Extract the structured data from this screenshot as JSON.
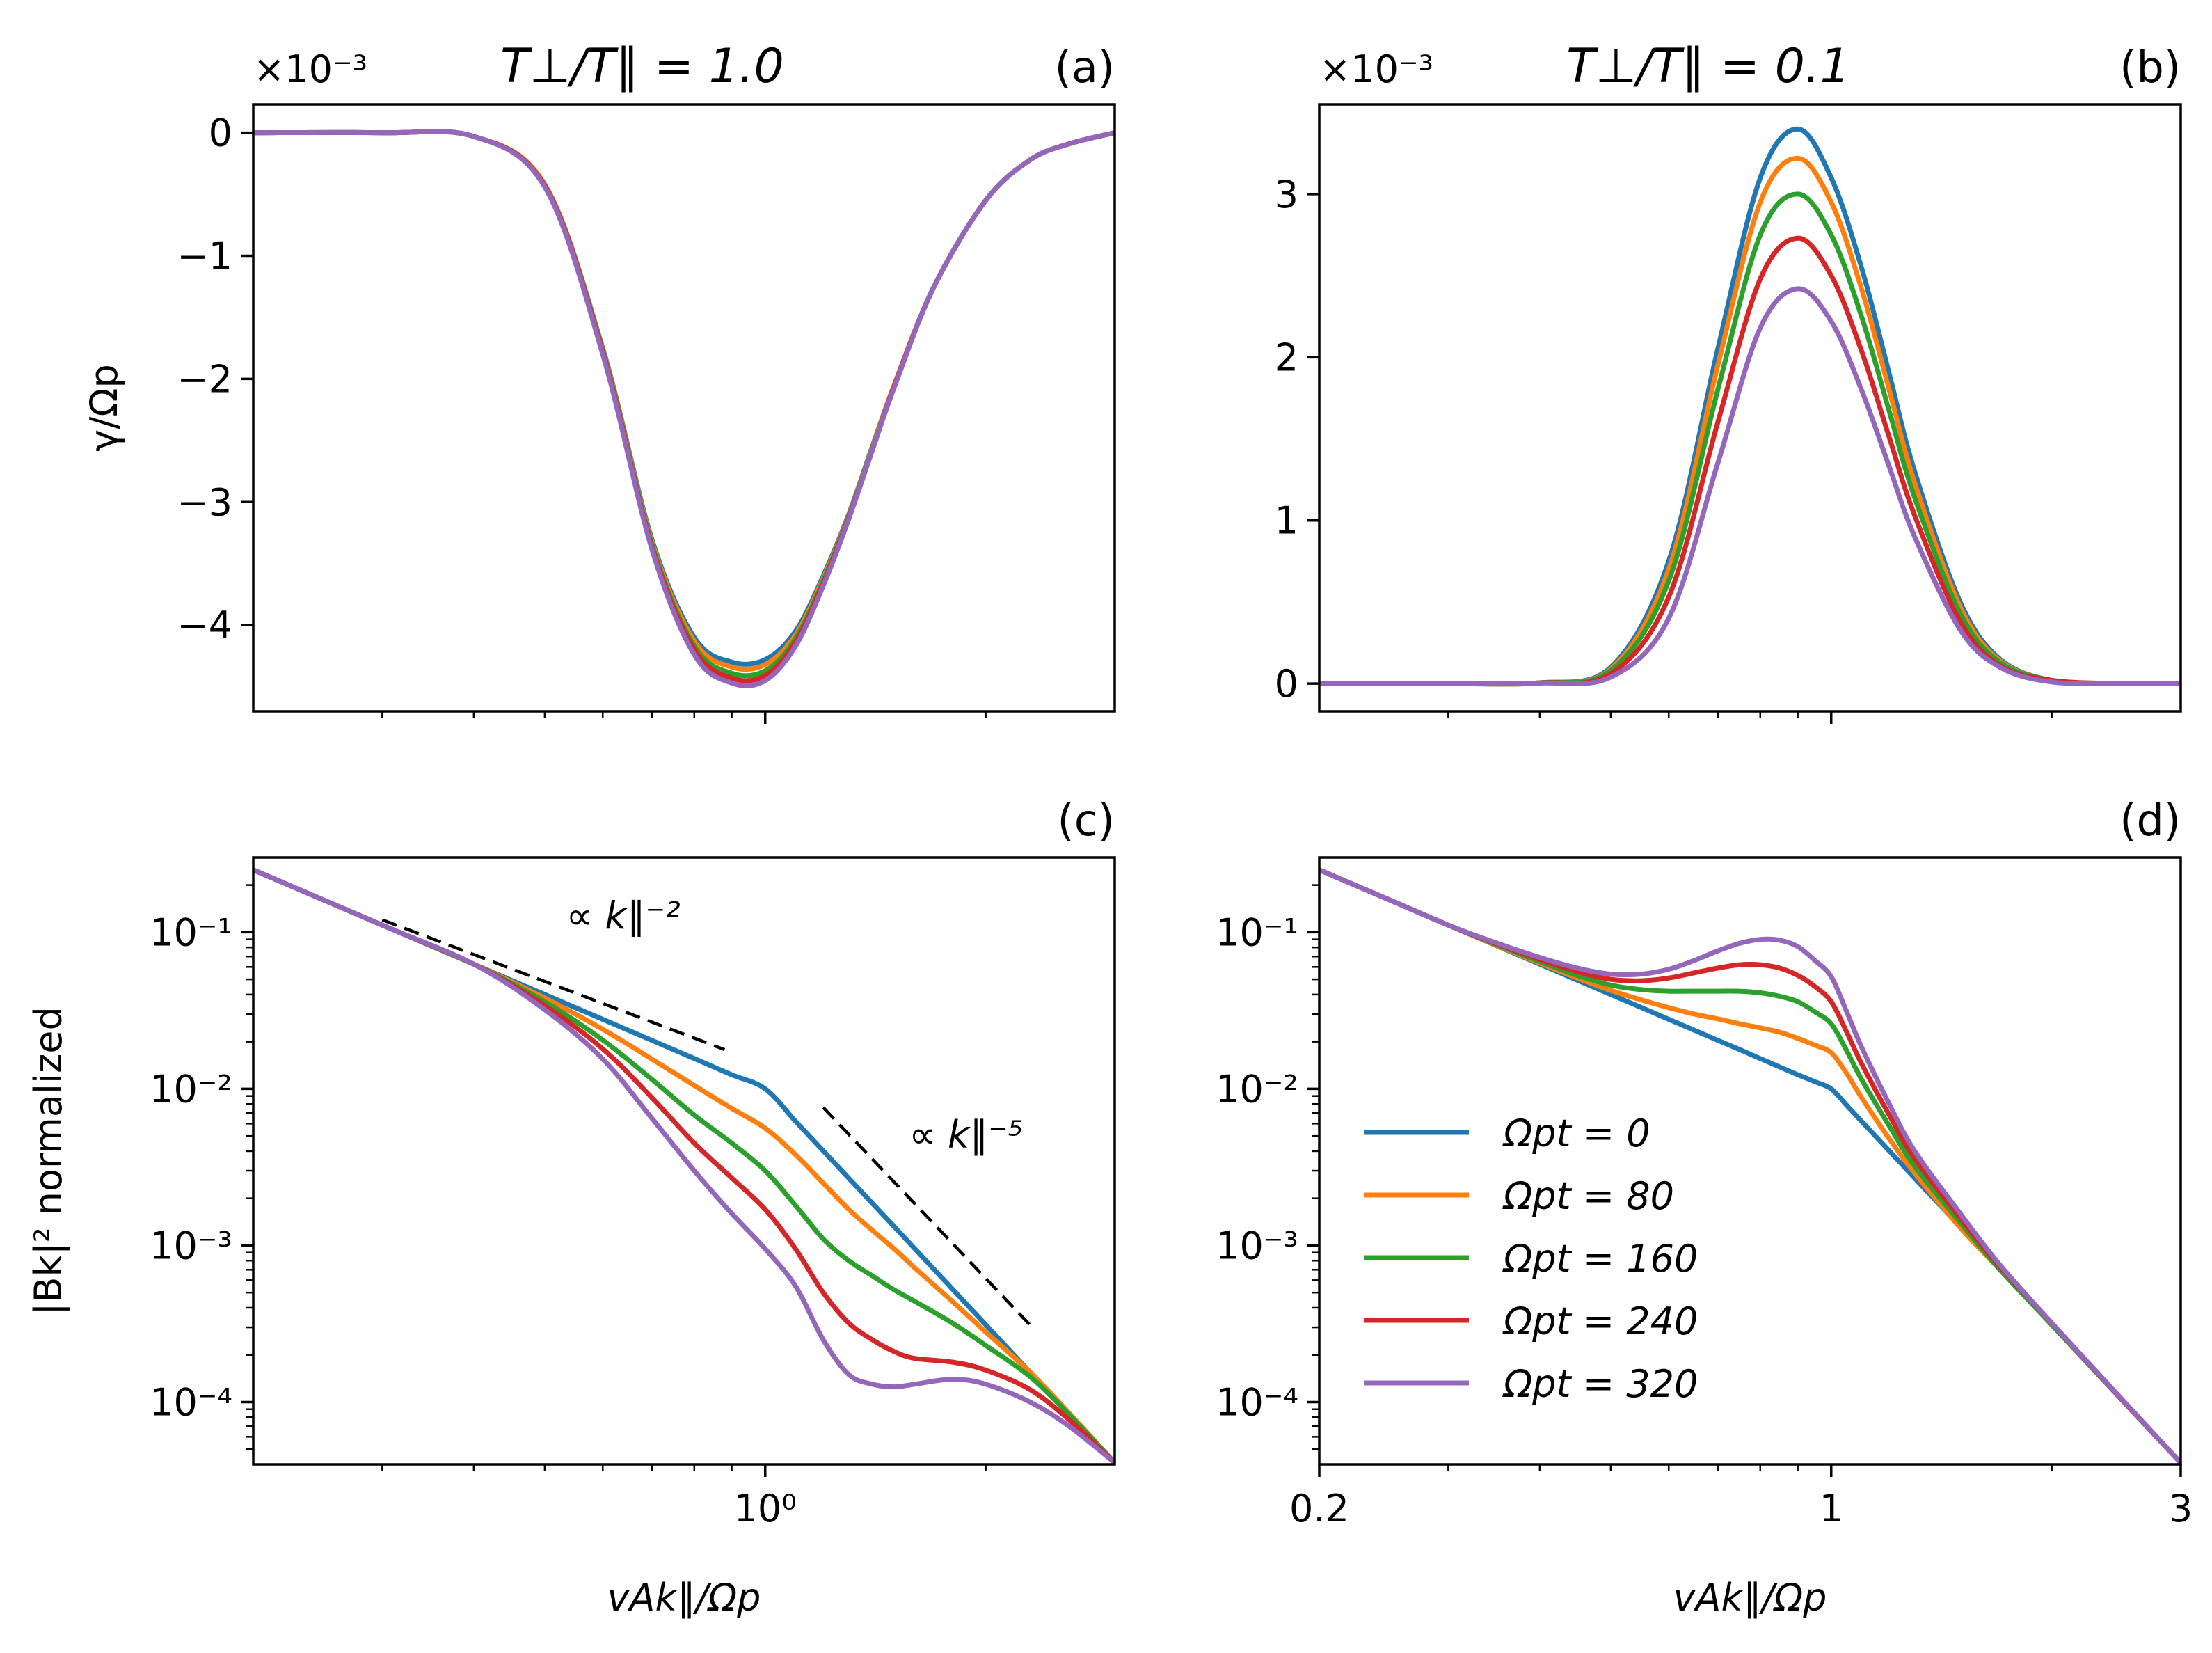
{
  "figure": {
    "colors": [
      "#1f77b4",
      "#ff7f0e",
      "#2ca02c",
      "#d62728",
      "#9467bd"
    ],
    "legend": {
      "entries": [
        "Ωpt = 0",
        "Ωpt = 80",
        "Ωpt = 160",
        "Ωpt = 240",
        "Ωpt = 320"
      ]
    }
  },
  "chart_data": [
    {
      "id": "a",
      "type": "line",
      "panel_label": "(a)",
      "title": "T⊥/T∥ = 1.0",
      "ylabel": "γ/Ωp",
      "xlabel": "",
      "y_multiplier_label": "×10⁻³",
      "xscale": "log",
      "xlim": [
        0.2,
        3.0
      ],
      "ylim": [
        -4.7,
        0.23
      ],
      "yticks": [
        0,
        -1,
        -2,
        -3,
        -4
      ],
      "ytick_labels": [
        "0",
        "−1",
        "−2",
        "−3",
        "−4"
      ],
      "x_grid": [
        0.2,
        0.3,
        0.4,
        0.5,
        0.6,
        0.7,
        0.8,
        0.9,
        1.0,
        1.1,
        1.2,
        1.3,
        1.4,
        1.5,
        1.7,
        2.0,
        2.3,
        2.6,
        3.0
      ],
      "series": [
        {
          "name": "Ωpt = 0",
          "values": [
            0.0,
            0.0,
            -0.03,
            -0.42,
            -1.75,
            -3.3,
            -4.1,
            -4.3,
            -4.28,
            -4.05,
            -3.6,
            -3.1,
            -2.55,
            -2.05,
            -1.25,
            -0.55,
            -0.22,
            -0.09,
            0.0
          ]
        },
        {
          "name": "Ωpt = 80",
          "values": [
            0.0,
            0.0,
            -0.03,
            -0.42,
            -1.76,
            -3.32,
            -4.13,
            -4.34,
            -4.32,
            -4.08,
            -3.62,
            -3.11,
            -2.56,
            -2.05,
            -1.25,
            -0.55,
            -0.22,
            -0.09,
            0.0
          ]
        },
        {
          "name": "Ωpt = 160",
          "values": [
            0.0,
            0.0,
            -0.03,
            -0.43,
            -1.77,
            -3.34,
            -4.17,
            -4.39,
            -4.37,
            -4.11,
            -3.64,
            -3.12,
            -2.57,
            -2.06,
            -1.25,
            -0.55,
            -0.22,
            -0.09,
            0.0
          ]
        },
        {
          "name": "Ωpt = 240",
          "values": [
            0.0,
            0.0,
            -0.03,
            -0.43,
            -1.78,
            -3.36,
            -4.2,
            -4.43,
            -4.41,
            -4.14,
            -3.66,
            -3.13,
            -2.58,
            -2.06,
            -1.25,
            -0.55,
            -0.22,
            -0.09,
            0.0
          ]
        },
        {
          "name": "Ωpt = 320",
          "values": [
            0.0,
            0.0,
            -0.03,
            -0.44,
            -1.8,
            -3.38,
            -4.24,
            -4.47,
            -4.45,
            -4.17,
            -3.68,
            -3.14,
            -2.58,
            -2.07,
            -1.25,
            -0.55,
            -0.22,
            -0.09,
            0.0
          ]
        }
      ]
    },
    {
      "id": "b",
      "type": "line",
      "panel_label": "(b)",
      "title": "T⊥/T∥ = 0.1",
      "ylabel": "",
      "xlabel": "",
      "y_multiplier_label": "×10⁻³",
      "xscale": "log",
      "xlim": [
        0.2,
        3.0
      ],
      "ylim": [
        -0.17,
        3.55
      ],
      "yticks": [
        0,
        1,
        2,
        3
      ],
      "ytick_labels": [
        "0",
        "1",
        "2",
        "3"
      ],
      "x_grid": [
        0.2,
        0.3,
        0.4,
        0.5,
        0.6,
        0.7,
        0.8,
        0.9,
        1.0,
        1.1,
        1.2,
        1.3,
        1.5,
        1.7,
        2.0,
        2.5,
        3.0
      ],
      "series": [
        {
          "name": "Ωpt = 0",
          "values": [
            0.0,
            0.0,
            0.005,
            0.1,
            0.75,
            2.05,
            3.1,
            3.4,
            3.1,
            2.55,
            1.9,
            1.3,
            0.5,
            0.15,
            0.02,
            0.0,
            0.0
          ]
        },
        {
          "name": "Ωpt = 80",
          "values": [
            0.0,
            0.0,
            0.005,
            0.09,
            0.7,
            1.95,
            2.95,
            3.22,
            2.95,
            2.42,
            1.8,
            1.23,
            0.47,
            0.14,
            0.02,
            0.0,
            0.0
          ]
        },
        {
          "name": "Ωpt = 160",
          "values": [
            0.0,
            0.0,
            0.005,
            0.08,
            0.63,
            1.8,
            2.75,
            3.0,
            2.75,
            2.25,
            1.67,
            1.14,
            0.43,
            0.13,
            0.02,
            0.0,
            0.0
          ]
        },
        {
          "name": "Ωpt = 240",
          "values": [
            0.0,
            0.0,
            0.004,
            0.06,
            0.53,
            1.6,
            2.48,
            2.73,
            2.5,
            2.04,
            1.51,
            1.03,
            0.38,
            0.11,
            0.02,
            0.0,
            0.0
          ]
        },
        {
          "name": "Ωpt = 320",
          "values": [
            0.0,
            0.0,
            0.003,
            0.04,
            0.4,
            1.35,
            2.18,
            2.42,
            2.22,
            1.8,
            1.33,
            0.9,
            0.33,
            0.1,
            0.01,
            0.0,
            0.0
          ]
        }
      ]
    },
    {
      "id": "c",
      "type": "line",
      "panel_label": "(c)",
      "title": "",
      "ylabel": "|Bk|² normalized",
      "xlabel": "vAk∥/Ωp",
      "xscale": "log",
      "yscale": "log",
      "xlim": [
        0.2,
        3.0
      ],
      "ylim": [
        4e-05,
        0.3
      ],
      "yticks": [
        0.1,
        0.01,
        0.001,
        0.0001
      ],
      "ytick_labels": [
        "10⁻¹",
        "10⁻²",
        "10⁻³",
        "10⁻⁴"
      ],
      "xticks": [
        1.0
      ],
      "xtick_labels": [
        "10⁰"
      ],
      "x_grid": [
        0.2,
        0.3,
        0.4,
        0.5,
        0.6,
        0.7,
        0.8,
        0.9,
        1.0,
        1.1,
        1.2,
        1.3,
        1.4,
        1.5,
        1.6,
        1.8,
        2.0,
        2.3,
        2.6,
        3.0
      ],
      "series": [
        {
          "name": "Ωpt = 0",
          "values": [
            0.25,
            0.111,
            0.0625,
            0.04,
            0.0278,
            0.0204,
            0.0156,
            0.0123,
            0.01,
            0.00621,
            0.00402,
            0.00269,
            0.00186,
            0.00132,
            0.000954,
            0.000529,
            0.000312,
            0.000155,
            8.4e-05,
            4.1e-05
          ]
        },
        {
          "name": "Ωpt = 80",
          "values": [
            0.25,
            0.111,
            0.0625,
            0.038,
            0.024,
            0.0155,
            0.0105,
            0.0075,
            0.0056,
            0.0038,
            0.0025,
            0.0017,
            0.00125,
            0.00095,
            0.00072,
            0.00044,
            0.00028,
            0.000155,
            8.5e-05,
            4.1e-05
          ]
        },
        {
          "name": "Ωpt = 160",
          "values": [
            0.25,
            0.111,
            0.0625,
            0.036,
            0.0205,
            0.0115,
            0.0068,
            0.0045,
            0.003,
            0.0018,
            0.0011,
            0.0008,
            0.00064,
            0.00052,
            0.00044,
            0.00032,
            0.00023,
            0.000145,
            8.3e-05,
            4.1e-05
          ]
        },
        {
          "name": "Ωpt = 240",
          "values": [
            0.25,
            0.111,
            0.0625,
            0.034,
            0.018,
            0.0088,
            0.0045,
            0.0027,
            0.0017,
            0.00095,
            0.0005,
            0.00032,
            0.00025,
            0.00021,
            0.00019,
            0.00018,
            0.00016,
            0.00012,
            7.7e-05,
            4.1e-05
          ]
        },
        {
          "name": "Ωpt = 320",
          "values": [
            0.25,
            0.111,
            0.0625,
            0.032,
            0.0155,
            0.0065,
            0.003,
            0.0016,
            0.00095,
            0.00055,
            0.00025,
            0.00015,
            0.00013,
            0.000125,
            0.00013,
            0.00014,
            0.00013,
            0.0001,
            7e-05,
            4.1e-05
          ]
        }
      ],
      "annotations": [
        {
          "text": "∝ k∥⁻²",
          "x": 0.64,
          "y": 0.105
        },
        {
          "text": "∝ k∥⁻⁵",
          "x": 1.88,
          "y": 0.0042
        }
      ],
      "guides": [
        {
          "x": [
            0.3,
            0.88
          ],
          "y": [
            0.12,
            0.0178
          ]
        },
        {
          "x": [
            1.2,
            2.3
          ],
          "y": [
            0.0076,
            0.00031
          ]
        }
      ]
    },
    {
      "id": "d",
      "type": "line",
      "panel_label": "(d)",
      "title": "",
      "ylabel": "",
      "xlabel": "vAk∥/Ωp",
      "xscale": "log",
      "yscale": "log",
      "xlim": [
        0.2,
        3.0
      ],
      "ylim": [
        4e-05,
        0.3
      ],
      "yticks": [
        0.1,
        0.01,
        0.001,
        0.0001
      ],
      "ytick_labels": [
        "10⁻¹",
        "10⁻²",
        "10⁻³",
        "10⁻⁴"
      ],
      "xticks": [
        0.2,
        1.0,
        3.0
      ],
      "xtick_labels": [
        "0.2",
        "1",
        "3"
      ],
      "x_grid": [
        0.2,
        0.25,
        0.3,
        0.35,
        0.4,
        0.45,
        0.5,
        0.55,
        0.6,
        0.65,
        0.7,
        0.75,
        0.8,
        0.85,
        0.9,
        0.95,
        1.0,
        1.05,
        1.1,
        1.2,
        1.3,
        1.5,
        1.7,
        2.0,
        2.5,
        3.0
      ],
      "series": [
        {
          "name": "Ωpt = 0",
          "values": [
            0.25,
            0.16,
            0.111,
            0.0816,
            0.0625,
            0.0494,
            0.04,
            0.0331,
            0.0278,
            0.0237,
            0.0204,
            0.0178,
            0.0156,
            0.0138,
            0.0123,
            0.0111,
            0.01,
            0.00784,
            0.00621,
            0.00402,
            0.00269,
            0.00132,
            0.000704,
            0.000312,
            0.000102,
            4.1e-05
          ]
        },
        {
          "name": "Ωpt = 80",
          "values": [
            0.25,
            0.16,
            0.111,
            0.082,
            0.0635,
            0.051,
            0.0425,
            0.037,
            0.033,
            0.03,
            0.028,
            0.026,
            0.0245,
            0.023,
            0.021,
            0.019,
            0.017,
            0.0125,
            0.0088,
            0.0048,
            0.0029,
            0.0013,
            0.0007,
            0.000312,
            0.000102,
            4.1e-05
          ]
        },
        {
          "name": "Ωpt = 160",
          "values": [
            0.25,
            0.16,
            0.111,
            0.083,
            0.065,
            0.053,
            0.046,
            0.043,
            0.042,
            0.042,
            0.042,
            0.042,
            0.041,
            0.039,
            0.036,
            0.031,
            0.026,
            0.0175,
            0.0115,
            0.0058,
            0.0032,
            0.0014,
            0.0007,
            0.000312,
            0.000102,
            4.1e-05
          ]
        },
        {
          "name": "Ωpt = 240",
          "values": [
            0.25,
            0.16,
            0.111,
            0.084,
            0.067,
            0.056,
            0.05,
            0.049,
            0.051,
            0.055,
            0.059,
            0.062,
            0.062,
            0.059,
            0.053,
            0.045,
            0.036,
            0.023,
            0.0145,
            0.0068,
            0.0036,
            0.0015,
            0.00073,
            0.00032,
            0.000102,
            4.1e-05
          ]
        },
        {
          "name": "Ωpt = 320",
          "values": [
            0.25,
            0.16,
            0.111,
            0.085,
            0.069,
            0.059,
            0.054,
            0.054,
            0.058,
            0.066,
            0.076,
            0.085,
            0.09,
            0.089,
            0.081,
            0.066,
            0.052,
            0.031,
            0.0185,
            0.008,
            0.004,
            0.0016,
            0.00075,
            0.00032,
            0.000103,
            4.1e-05
          ]
        }
      ],
      "legend": {
        "placement": "lower-left"
      }
    }
  ]
}
